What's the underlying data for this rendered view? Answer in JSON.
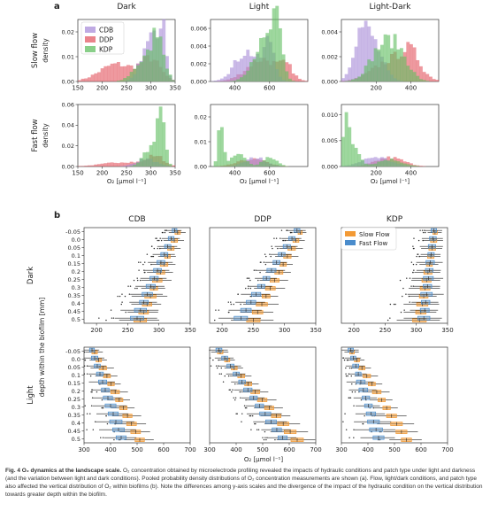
{
  "panel_a": {
    "label": "a",
    "col_titles": [
      "Dark",
      "Light",
      "Light-Dark"
    ],
    "row_labels": [
      "Slow flow",
      "Fast flow"
    ],
    "ylabel": "density",
    "xlabel": "O₂ [μmol l⁻¹]",
    "legend": [
      "CDB",
      "DDP",
      "KDP"
    ],
    "colors": {
      "CDB": "#a98ed9",
      "DDP": "#e35a64",
      "KDP": "#62bf62"
    },
    "axes": [
      {
        "xlim": [
          150,
          350
        ],
        "xticks": [
          "150",
          "200",
          "250",
          "300",
          "350"
        ],
        "ylim_top": [
          0,
          0.025
        ],
        "yticks_top": [
          "0.00",
          "0.01",
          "0.02"
        ],
        "ylim_bot": [
          0,
          0.06
        ],
        "yticks_bot": [
          "0.00",
          "0.02",
          "0.04",
          "0.06"
        ]
      },
      {
        "xlim": [
          260,
          820
        ],
        "xticks": [
          "400",
          "600"
        ],
        "ylim_top": [
          0,
          0.007
        ],
        "yticks_top": [
          "0.000",
          "0.002",
          "0.004",
          "0.006"
        ],
        "ylim_bot": [
          0,
          0.025
        ],
        "yticks_bot": [
          "0.00",
          "0.01",
          "0.02"
        ]
      },
      {
        "xlim": [
          0,
          560
        ],
        "xticks": [
          "200",
          "400"
        ],
        "ylim_top": [
          0,
          0.005
        ],
        "yticks_top": [
          "0.000",
          "0.002",
          "0.004"
        ],
        "ylim_bot": [
          0,
          0.012
        ],
        "yticks_bot": [
          "0.000",
          "0.005",
          "0.010"
        ]
      }
    ]
  },
  "panel_b": {
    "label": "b",
    "col_titles": [
      "CDB",
      "DDP",
      "KDP"
    ],
    "row_labels": [
      "Dark",
      "Light"
    ],
    "ylabel": "depth within the biofilm [mm]",
    "depths": [
      "-0.05",
      "0.0",
      "0.05",
      "0.1",
      "0.15",
      "0.2",
      "0.25",
      "0.3",
      "0.35",
      "0.4",
      "0.45",
      "0.5"
    ],
    "legend": [
      "Slow Flow",
      "Fast Flow"
    ],
    "colors": {
      "slow": "#f39a35",
      "fast": "#4a8ccc"
    },
    "xticks_dark": [
      "200",
      "250",
      "300",
      "350"
    ],
    "xticks_light": [
      "300",
      "400",
      "500",
      "600",
      "700"
    ],
    "xlabel": "O₂ [μmol l⁻¹]"
  },
  "caption": {
    "fig_label": "Fig. 4",
    "title": "O₂ dynamics at the landscape scale.",
    "body": "O₂ concentration obtained by microelectrode profiling revealed the impacts of hydraulic conditions and patch type under light and darkness (and the variation between light and dark conditions). Pooled probability density distributions of O₂ concentration measurements are shown (a). Flow, light/dark conditions, and patch type also affected the vertical distribution of O₂ within biofilms (b). Note the differences among y-axis scales and the divergence of the impact of the hydraulic condition on the vertical distribution towards greater depth within the biofilm."
  }
}
